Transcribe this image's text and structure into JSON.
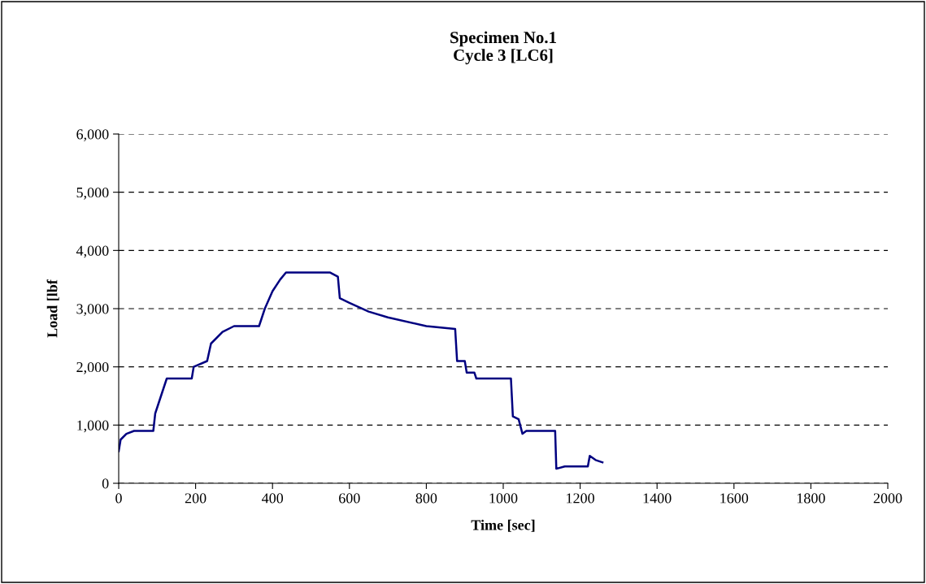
{
  "chart_data": {
    "type": "line",
    "title": "Specimen No.1\nCycle 3 [LC6]",
    "xlabel": "Time [sec]",
    "ylabel": "Load [lbf",
    "xlim": [
      0,
      2000
    ],
    "xticks": [
      0,
      200,
      400,
      600,
      800,
      1000,
      1200,
      1400,
      1600,
      1800,
      2000
    ],
    "ylim": [
      0,
      6000
    ],
    "yticks": [
      {
        "value": 0,
        "label": "0"
      },
      {
        "value": 1000,
        "label": "1,000"
      },
      {
        "value": 2000,
        "label": "2,000"
      },
      {
        "value": 3000,
        "label": "3,000"
      },
      {
        "value": 4000,
        "label": "4,000"
      },
      {
        "value": 5000,
        "label": "5,000"
      },
      {
        "value": 6000,
        "label": "6,000"
      }
    ],
    "grid": "y",
    "legend": false,
    "marker": "none",
    "line_style": "solid",
    "series": [
      {
        "color": "#000080",
        "x": [
          0,
          5,
          20,
          40,
          90,
          95,
          110,
          125,
          190,
          195,
          230,
          240,
          270,
          300,
          365,
          380,
          400,
          420,
          435,
          550,
          570,
          575,
          600,
          650,
          700,
          800,
          875,
          880,
          900,
          905,
          925,
          930,
          1020,
          1025,
          1040,
          1050,
          1060,
          1135,
          1138,
          1160,
          1220,
          1225,
          1240,
          1258
        ],
        "values": [
          550,
          750,
          850,
          900,
          900,
          1200,
          1500,
          1800,
          1800,
          2000,
          2100,
          2400,
          2600,
          2700,
          2700,
          3000,
          3300,
          3500,
          3620,
          3620,
          3550,
          3180,
          3100,
          2950,
          2850,
          2700,
          2650,
          2100,
          2100,
          1900,
          1900,
          1800,
          1800,
          1150,
          1100,
          850,
          900,
          900,
          250,
          290,
          290,
          470,
          400,
          360
        ]
      }
    ]
  }
}
